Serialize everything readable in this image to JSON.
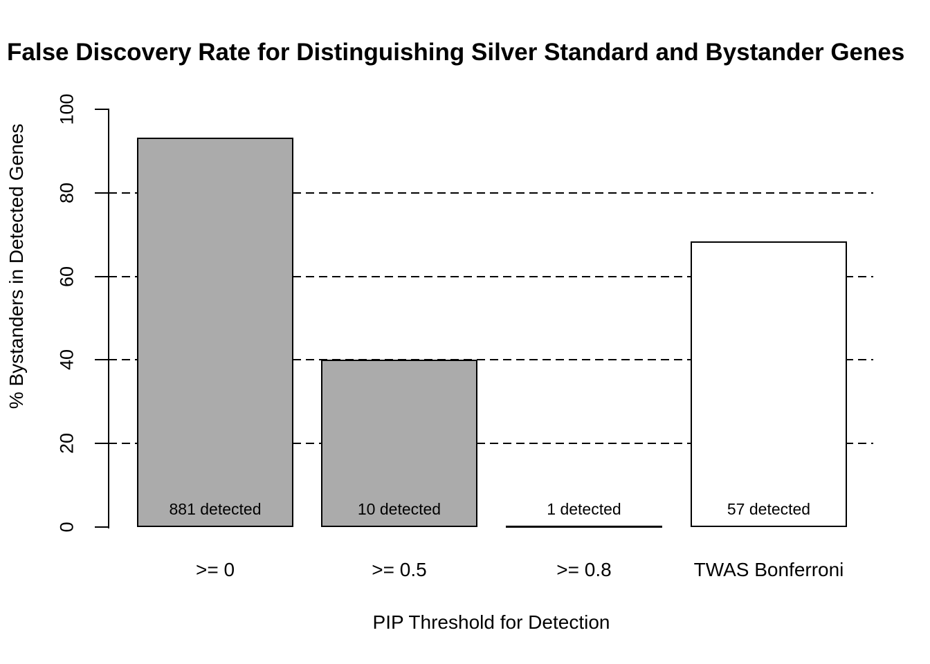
{
  "chart_data": {
    "type": "bar",
    "title": "False Discovery Rate for Distinguishing Silver Standard and Bystander Genes",
    "xlabel": "PIP Threshold for Detection",
    "ylabel": "% Bystanders in Detected Genes",
    "categories": [
      ">= 0",
      ">= 0.5",
      ">= 0.8",
      "TWAS Bonferroni"
    ],
    "values": [
      93.2,
      40,
      0,
      68.4
    ],
    "bar_labels": [
      "881 detected",
      "10 detected",
      "1 detected",
      "57 detected"
    ],
    "bar_fill_colors": [
      "#ababab",
      "#ababab",
      "#ababab",
      "#ffffff"
    ],
    "bar_border_color": "#000000",
    "yticks": [
      0,
      20,
      40,
      60,
      80,
      100
    ],
    "gridlines": [
      20,
      40,
      60,
      80
    ],
    "grid_style": "dashed",
    "ylim": [
      0,
      100
    ],
    "legend": null
  }
}
